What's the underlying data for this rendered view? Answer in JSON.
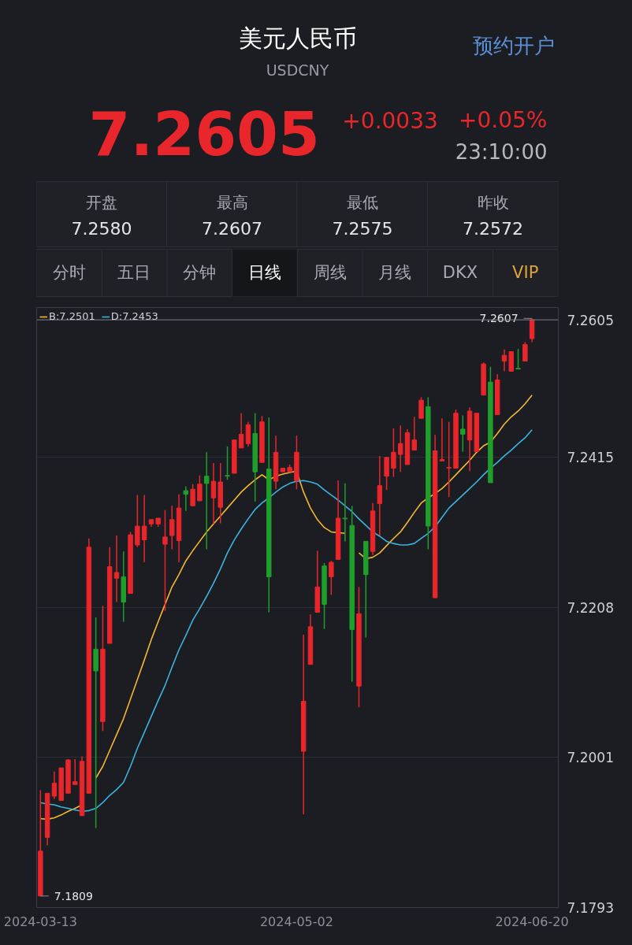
{
  "chart_data": {
    "type": "candlestick",
    "title": "美元人民币",
    "subtitle": "USDCNY",
    "annotations": [
      "7.2605",
      "+0.0033",
      "+0.05%",
      "23:10:00",
      "开盘",
      "7.2580",
      "最高",
      "7.2607",
      "最低",
      "7.2575",
      "昨收",
      "7.2572",
      "分时",
      "五日",
      "分钟",
      "日线",
      "周线",
      "月线",
      "DKX",
      "VIP",
      "预约开户",
      "7.2607",
      "7.1809"
    ],
    "categories": [
      "2024-03-13",
      null,
      null,
      null,
      null,
      null,
      null,
      null,
      null,
      null,
      null,
      null,
      null,
      null,
      null,
      null,
      null,
      null,
      null,
      null,
      null,
      null,
      null,
      null,
      null,
      null,
      null,
      null,
      null,
      null,
      null,
      null,
      null,
      null,
      null,
      null,
      null,
      "2024-05-02",
      null,
      null,
      null,
      null,
      null,
      null,
      null,
      null,
      null,
      null,
      null,
      null,
      null,
      null,
      null,
      null,
      null,
      null,
      null,
      null,
      null,
      null,
      null,
      null,
      null,
      null,
      null,
      null,
      null,
      null,
      null,
      null,
      null,
      "2024-06-20"
    ],
    "ohlc": [
      [
        7.1809,
        7.1955,
        7.1809,
        7.1871
      ],
      [
        7.189,
        7.1951,
        7.1879,
        7.1951
      ],
      [
        7.1947,
        7.1981,
        7.1943,
        7.1965
      ],
      [
        7.1941,
        7.1986,
        7.1941,
        7.1986
      ],
      [
        7.1951,
        7.1998,
        7.1951,
        7.1997
      ],
      [
        7.1963,
        7.1998,
        7.1963,
        7.1967
      ],
      [
        7.192,
        7.2002,
        7.192,
        7.1995
      ],
      [
        7.1951,
        7.2303,
        7.1951,
        7.2291
      ],
      [
        7.215,
        7.2194,
        7.1903,
        7.212
      ],
      [
        7.205,
        7.221,
        7.2037,
        7.215
      ],
      [
        7.2158,
        7.2291,
        7.2158,
        7.2264
      ],
      [
        7.2248,
        7.2307,
        7.2215,
        7.2256
      ],
      [
        7.225,
        7.2285,
        7.2188,
        7.2215
      ],
      [
        7.2227,
        7.2312,
        7.2227,
        7.2308
      ],
      [
        7.2294,
        7.2363,
        7.2291,
        7.232
      ],
      [
        7.2301,
        7.2363,
        7.227,
        7.232
      ],
      [
        7.2323,
        7.2329,
        7.2319,
        7.2329
      ],
      [
        7.2323,
        7.2331,
        7.2319,
        7.2331
      ],
      [
        7.2295,
        7.2342,
        7.2203,
        7.2305
      ],
      [
        7.2307,
        7.2348,
        7.2288,
        7.2329
      ],
      [
        7.23,
        7.2364,
        7.227,
        7.2345
      ],
      [
        7.2369,
        7.2375,
        7.2341,
        7.2364
      ],
      [
        7.2348,
        7.2378,
        7.2348,
        7.2371
      ],
      [
        7.2355,
        7.239,
        7.2355,
        7.2378
      ],
      [
        7.2389,
        7.2422,
        7.2288,
        7.2379
      ],
      [
        7.2359,
        7.2407,
        7.2323,
        7.2382
      ],
      [
        7.2346,
        7.2407,
        7.2324,
        7.2381
      ],
      [
        7.239,
        7.243,
        7.2384,
        7.2389
      ],
      [
        7.2393,
        7.2439,
        7.2393,
        7.2439
      ],
      [
        7.2428,
        7.2476,
        7.2428,
        7.2447
      ],
      [
        7.2434,
        7.2464,
        7.243,
        7.246
      ],
      [
        7.2448,
        7.2476,
        7.2354,
        7.2395
      ],
      [
        7.2408,
        7.2472,
        7.2408,
        7.2464
      ],
      [
        7.2399,
        7.247,
        7.2201,
        7.225
      ],
      [
        7.2382,
        7.2445,
        7.2371,
        7.2422
      ],
      [
        7.2395,
        7.24,
        7.2395,
        7.24
      ],
      [
        7.2395,
        7.2405,
        7.2395,
        7.2401
      ],
      [
        7.2383,
        7.2445,
        7.2371,
        7.2422
      ],
      [
        7.2009,
        7.217,
        7.1922,
        7.2078
      ],
      [
        7.2129,
        7.2198,
        7.2129,
        7.2181
      ],
      [
        7.2201,
        7.2286,
        7.2201,
        7.2236
      ],
      [
        7.2265,
        7.2269,
        7.2178,
        7.2212
      ],
      [
        7.225,
        7.2272,
        7.2225,
        7.227
      ],
      [
        7.2274,
        7.2383,
        7.2274,
        7.2331
      ],
      [
        7.2331,
        7.2379,
        7.2299,
        7.233
      ],
      [
        7.2321,
        7.2348,
        7.2105,
        7.2177
      ],
      [
        7.2099,
        7.2236,
        7.207,
        7.2199
      ],
      [
        7.2299,
        7.2299,
        7.2166,
        7.2253
      ],
      [
        7.2285,
        7.2352,
        7.228,
        7.2341
      ],
      [
        7.2351,
        7.2417,
        7.2307,
        7.2376
      ],
      [
        7.2389,
        7.2415,
        7.237,
        7.2415
      ],
      [
        7.24,
        7.2455,
        7.2388,
        7.2422
      ],
      [
        7.2419,
        7.2459,
        7.2395,
        7.2434
      ],
      [
        7.2405,
        7.2454,
        7.2405,
        7.2449
      ],
      [
        7.2425,
        7.2471,
        7.2425,
        7.2439
      ],
      [
        7.2469,
        7.2498,
        7.2469,
        7.2494
      ],
      [
        7.2485,
        7.2498,
        7.2288,
        7.232
      ],
      [
        7.2221,
        7.2446,
        7.2221,
        7.2424
      ],
      [
        7.241,
        7.2469,
        7.241,
        7.2412
      ],
      [
        7.24,
        7.2464,
        7.236,
        7.2401
      ],
      [
        7.24,
        7.2481,
        7.24,
        7.2476
      ],
      [
        7.2454,
        7.2473,
        7.2423,
        7.2447
      ],
      [
        7.2439,
        7.2484,
        7.2396,
        7.2479
      ],
      [
        7.2423,
        7.2476,
        7.2423,
        7.2476
      ],
      [
        7.2501,
        7.2546,
        7.2501,
        7.2544
      ],
      [
        7.2519,
        7.254,
        7.238,
        7.238
      ],
      [
        7.2474,
        7.253,
        7.2474,
        7.2522
      ],
      [
        7.2548,
        7.2564,
        7.2534,
        7.2556
      ],
      [
        7.2534,
        7.2561,
        7.2534,
        7.2561
      ],
      [
        7.2538,
        7.2565,
        7.2537,
        7.2537
      ],
      [
        7.2548,
        7.2574,
        7.2548,
        7.2571
      ],
      [
        7.2579,
        7.2607,
        7.2574,
        7.2605
      ]
    ],
    "colors": [
      "#e8262b",
      "#e8262b",
      "#e8262b",
      "#e8262b",
      "#e8262b",
      "#e8262b",
      "#e8262b",
      "#e8262b",
      "#1f9e2c",
      "#e8262b",
      "#e8262b",
      "#e8262b",
      "#1f9e2c",
      "#e8262b",
      "#e8262b",
      "#e8262b",
      "#e8262b",
      "#e8262b",
      "#e8262b",
      "#e8262b",
      "#e8262b",
      "#1f9e2c",
      "#e8262b",
      "#e8262b",
      "#1f9e2c",
      "#e8262b",
      "#e8262b",
      "#1f9e2c",
      "#e8262b",
      "#e8262b",
      "#e8262b",
      "#1f9e2c",
      "#e8262b",
      "#1f9e2c",
      "#e8262b",
      "#e8262b",
      "#e8262b",
      "#e8262b",
      "#e8262b",
      "#e8262b",
      "#e8262b",
      "#1f9e2c",
      "#e8262b",
      "#e8262b",
      "#1f9e2c",
      "#1f9e2c",
      "#e8262b",
      "#1f9e2c",
      "#e8262b",
      "#e8262b",
      "#e8262b",
      "#e8262b",
      "#e8262b",
      "#e8262b",
      "#e8262b",
      "#e8262b",
      "#1f9e2c",
      "#e8262b",
      "#e8262b",
      "#e8262b",
      "#e8262b",
      "#1f9e2c",
      "#e8262b",
      "#e8262b",
      "#e8262b",
      "#1f9e2c",
      "#e8262b",
      "#e8262b",
      "#e8262b",
      "#1f9e2c",
      "#e8262b",
      "#e8262b"
    ],
    "series": [
      {
        "type": "line",
        "name": "B:7.2501",
        "color": "#f5b731",
        "values": [
          7.1916,
          7.1915,
          7.1917,
          7.1921,
          7.1926,
          7.193,
          7.1935,
          null,
          7.1972,
          7.1988,
          7.201,
          7.2032,
          7.2054,
          7.2081,
          7.2108,
          7.2135,
          7.2163,
          7.2188,
          7.2212,
          7.2236,
          7.2253,
          7.2272,
          7.2286,
          7.2299,
          7.2312,
          7.2323,
          7.2334,
          7.2345,
          7.2356,
          7.2367,
          7.2376,
          7.2384,
          7.2391,
          7.2384,
          7.2389,
          7.2392,
          7.2394,
          7.2396,
          7.2367,
          7.2345,
          7.2329,
          7.2318,
          7.2312,
          7.2311,
          7.231,
          null,
          7.2283,
          7.2275,
          7.2277,
          7.2283,
          7.2293,
          7.2303,
          7.2312,
          7.2325,
          7.2339,
          7.2352,
          7.2359,
          7.2365,
          7.2372,
          7.2381,
          7.2391,
          7.2401,
          7.2411,
          7.2422,
          7.2431,
          7.2436,
          7.2448,
          7.2461,
          7.2471,
          7.2479,
          7.2489,
          7.2501
        ]
      },
      {
        "type": "line",
        "name": "D:7.2453",
        "color": "#3ab4de",
        "values": [
          7.1938,
          7.1936,
          7.1935,
          7.1932,
          7.193,
          7.1928,
          7.1926,
          7.1927,
          7.193,
          7.1938,
          7.1948,
          7.1956,
          7.1966,
          7.1988,
          7.2013,
          7.2035,
          7.2057,
          7.2079,
          7.21,
          7.2125,
          7.2149,
          7.2169,
          7.219,
          7.2206,
          7.2223,
          7.2241,
          7.2261,
          7.2283,
          7.2301,
          7.2316,
          7.233,
          7.2343,
          7.2352,
          7.2359,
          7.2367,
          7.2374,
          7.2379,
          7.2382,
          7.2383,
          7.2381,
          7.2378,
          7.237,
          7.2363,
          7.2356,
          7.2348,
          7.234,
          7.233,
          7.2321,
          7.2312,
          7.2306,
          7.2299,
          7.2296,
          7.2294,
          7.2294,
          7.2296,
          7.2303,
          7.231,
          7.2319,
          7.2332,
          7.2345,
          7.2354,
          7.2363,
          7.2372,
          7.2381,
          7.2391,
          7.24,
          7.2408,
          7.2417,
          7.2425,
          7.2434,
          7.2442,
          7.2453
        ]
      }
    ],
    "ref_lines": [
      {
        "axis": "y",
        "value": 7.2605,
        "label": "7.2605",
        "color": "#7d8291"
      }
    ],
    "ylim": [
      7.1793,
      7.2622
    ],
    "yticks": [
      7.1793,
      7.2001,
      7.2208,
      7.2415
    ],
    "grid": "y",
    "legend": "top left"
  }
}
